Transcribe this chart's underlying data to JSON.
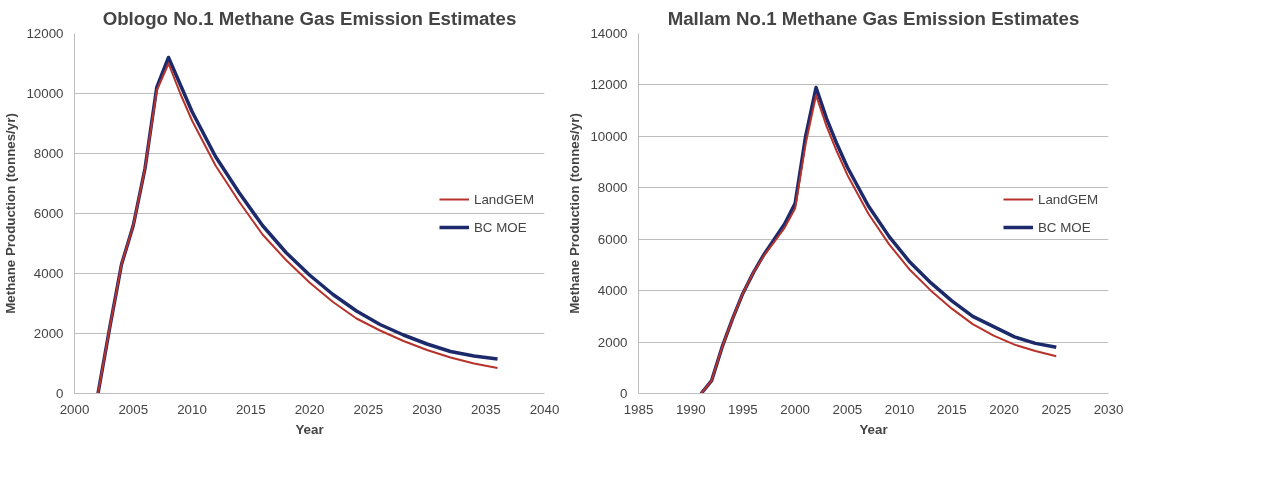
{
  "chart_data": [
    {
      "type": "line",
      "title": "Oblogo No.1 Methane Gas Emission Estimates",
      "xlabel": "Year",
      "ylabel": "Methane Production (tonnes/yr)",
      "xlim": [
        2000,
        2040
      ],
      "xticks": [
        2000,
        2005,
        2010,
        2015,
        2020,
        2025,
        2030,
        2035,
        2040
      ],
      "ylim": [
        0,
        12000
      ],
      "yticks": [
        0,
        2000,
        4000,
        6000,
        8000,
        10000,
        12000
      ],
      "grid": "y",
      "legend": "right",
      "marker": "none",
      "line_style": "solid",
      "series": [
        {
          "name": "LandGEM",
          "color": "#b8322c",
          "x": [
            2002,
            2003,
            2004,
            2005,
            2006,
            2007,
            2008,
            2009,
            2010,
            2012,
            2014,
            2016,
            2018,
            2020,
            2022,
            2024,
            2026,
            2028,
            2030,
            2032,
            2034,
            2036
          ],
          "values": [
            0,
            2200,
            4300,
            5600,
            7500,
            10100,
            11000,
            10000,
            9100,
            7600,
            6400,
            5300,
            4450,
            3700,
            3050,
            2500,
            2100,
            1750,
            1450,
            1200,
            1000,
            850
          ]
        },
        {
          "name": "BC MOE",
          "color": "#1c2a6b",
          "x": [
            2002,
            2003,
            2004,
            2005,
            2006,
            2007,
            2008,
            2009,
            2010,
            2012,
            2014,
            2016,
            2018,
            2020,
            2022,
            2024,
            2026,
            2028,
            2030,
            2032,
            2034,
            2036
          ],
          "values": [
            0,
            2200,
            4300,
            5600,
            7500,
            10200,
            11200,
            10300,
            9400,
            7900,
            6700,
            5600,
            4700,
            3950,
            3300,
            2750,
            2300,
            1950,
            1650,
            1400,
            1250,
            1150
          ]
        }
      ]
    },
    {
      "type": "line",
      "title": "Mallam No.1 Methane Gas Emission Estimates",
      "xlabel": "Year",
      "ylabel": "Methane Production (tonnes/yr)",
      "xlim": [
        1985,
        2030
      ],
      "xticks": [
        1985,
        1990,
        1995,
        2000,
        2005,
        2010,
        2015,
        2020,
        2025,
        2030
      ],
      "ylim": [
        0,
        14000
      ],
      "yticks": [
        0,
        2000,
        4000,
        6000,
        8000,
        10000,
        12000,
        14000
      ],
      "grid": "y",
      "legend": "right",
      "marker": "none",
      "line_style": "solid",
      "series": [
        {
          "name": "LandGEM",
          "color": "#b8322c",
          "x": [
            1991,
            1992,
            1993,
            1994,
            1995,
            1996,
            1997,
            1998,
            1999,
            2000,
            2001,
            2002,
            2003,
            2004,
            2005,
            2007,
            2009,
            2011,
            2013,
            2015,
            2017,
            2019,
            2021,
            2023,
            2025
          ],
          "values": [
            0,
            500,
            1800,
            2900,
            3900,
            4700,
            5350,
            5900,
            6450,
            7200,
            9700,
            11600,
            10400,
            9400,
            8500,
            7000,
            5800,
            4800,
            4000,
            3300,
            2700,
            2250,
            1900,
            1650,
            1450
          ]
        },
        {
          "name": "BC MOE",
          "color": "#1c2a6b",
          "x": [
            1991,
            1992,
            1993,
            1994,
            1995,
            1996,
            1997,
            1998,
            1999,
            2000,
            2001,
            2002,
            2003,
            2004,
            2005,
            2007,
            2009,
            2011,
            2013,
            2015,
            2017,
            2019,
            2021,
            2023,
            2025
          ],
          "values": [
            0,
            500,
            1800,
            2900,
            3900,
            4700,
            5400,
            6000,
            6600,
            7400,
            10000,
            11900,
            10700,
            9700,
            8800,
            7300,
            6100,
            5100,
            4300,
            3600,
            3000,
            2600,
            2200,
            1950,
            1800
          ]
        }
      ]
    }
  ]
}
